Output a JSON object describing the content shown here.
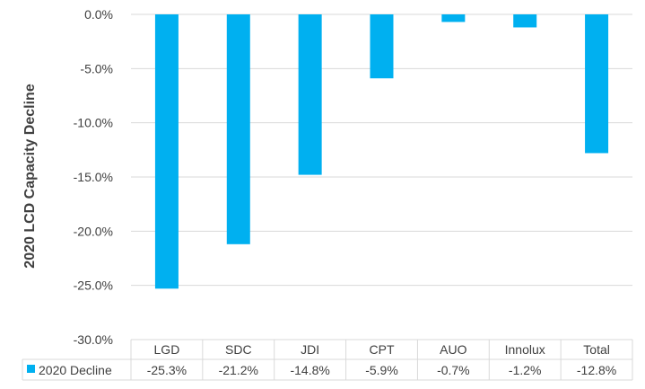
{
  "chart_data": {
    "type": "bar",
    "ylabel": "2020 LCD Capacity Decline",
    "categories": [
      "LGD",
      "SDC",
      "JDI",
      "CPT",
      "AUO",
      "Innolux",
      "Total"
    ],
    "series": [
      {
        "name": "2020 Decline",
        "values": [
          -25.3,
          -21.2,
          -14.8,
          -5.9,
          -0.7,
          -1.2,
          -12.8
        ],
        "value_labels": [
          "-25.3%",
          "-21.2%",
          "-14.8%",
          "-5.9%",
          "-0.7%",
          "-1.2%",
          "-12.8%"
        ],
        "color": "#00B0F0"
      }
    ],
    "ylim": [
      -30,
      0
    ],
    "yticks": [
      0,
      -5,
      -10,
      -15,
      -20,
      -25,
      -30
    ],
    "ytick_labels": [
      "0.0%",
      "-5.0%",
      "-10.0%",
      "-15.0%",
      "-20.0%",
      "-25.0%",
      "-30.0%"
    ],
    "grid": true,
    "legend": "data-table",
    "gridline_color": "#D9D9D9"
  }
}
